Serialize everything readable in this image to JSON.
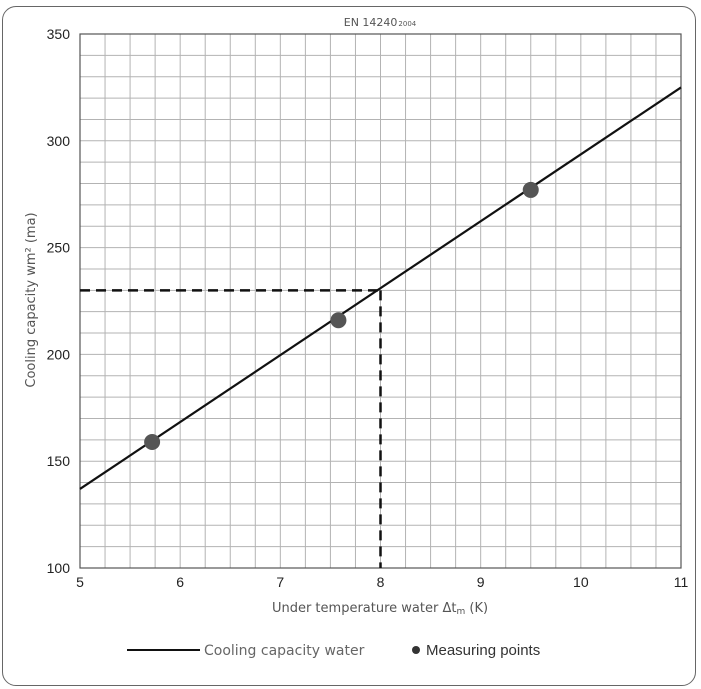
{
  "chart_data": {
    "type": "line",
    "title": "EN 14240",
    "title_subscript": "2004",
    "xlabel": "Under temperature water Δt",
    "xlabel_subscript": "m",
    "xlabel_unit": " (K)",
    "ylabel": "Cooling capacity wm² (ma)",
    "xlim": [
      5,
      11
    ],
    "ylim": [
      100,
      350
    ],
    "x_ticks": [
      "5",
      "6",
      "7",
      "8",
      "9",
      "10",
      "11"
    ],
    "y_ticks": [
      "100",
      "150",
      "200",
      "250",
      "300",
      "350"
    ],
    "grid": true,
    "series": [
      {
        "name": "Cooling capacity water",
        "kind": "line",
        "color": "#111111",
        "x": [
          5,
          11
        ],
        "y": [
          137,
          325
        ]
      },
      {
        "name": "Measuring points",
        "kind": "scatter",
        "color": "#555555",
        "x": [
          5.72,
          7.58,
          9.5
        ],
        "y": [
          159,
          216,
          277
        ]
      }
    ],
    "reference_lines": {
      "x": 8,
      "y": 230,
      "style": "dashed"
    },
    "legend": {
      "placement": "bottom",
      "line_label": "Cooling capacity water",
      "points_label": "Measuring points"
    }
  }
}
